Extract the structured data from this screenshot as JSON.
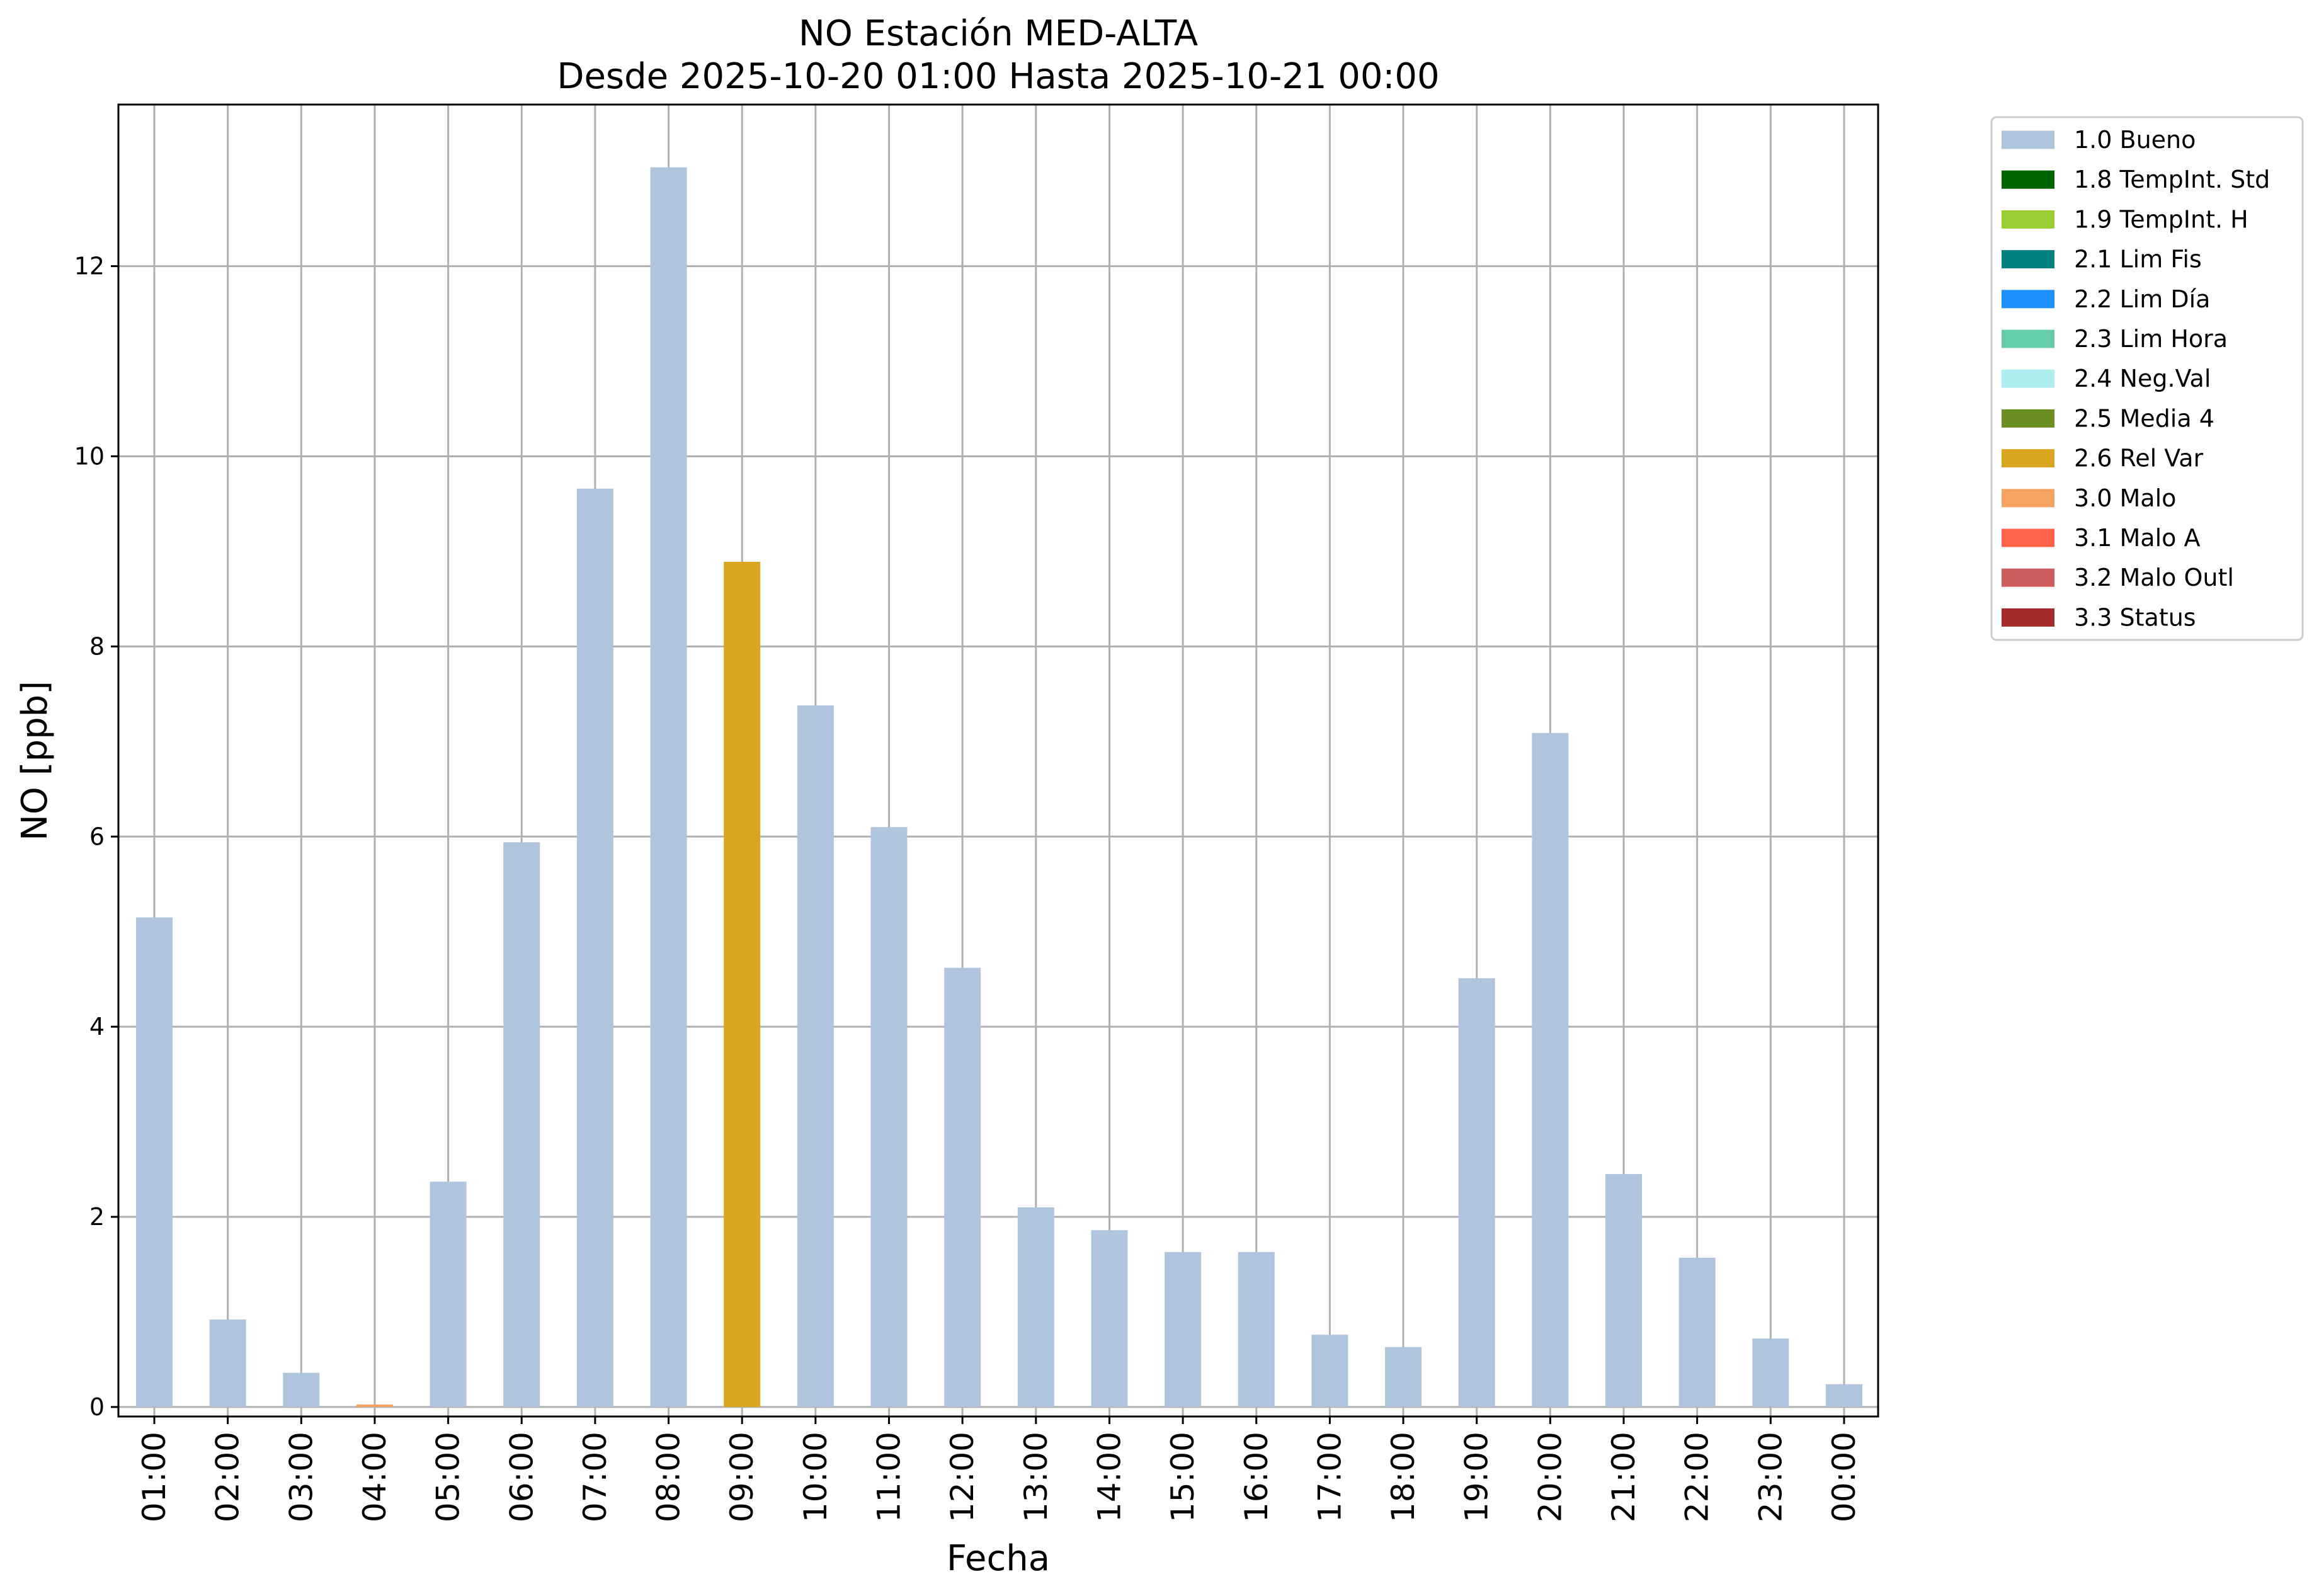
{
  "chart_data": {
    "type": "bar",
    "title": "NO Estación MED-ALTA",
    "subtitle": "Desde 2025-10-20 01:00 Hasta 2025-10-21 00:00",
    "xlabel": "Fecha",
    "ylabel": "NO [ppb]",
    "ylim": [
      -0.1,
      13.7
    ],
    "yticks": [
      0,
      2,
      4,
      6,
      8,
      10,
      12
    ],
    "grid": true,
    "legend_position": "outside top-right",
    "categories": [
      "01:00",
      "02:00",
      "03:00",
      "04:00",
      "05:00",
      "06:00",
      "07:00",
      "08:00",
      "09:00",
      "10:00",
      "11:00",
      "12:00",
      "13:00",
      "14:00",
      "15:00",
      "16:00",
      "17:00",
      "18:00",
      "19:00",
      "20:00",
      "21:00",
      "22:00",
      "23:00",
      "00:00"
    ],
    "values": [
      5.15,
      0.92,
      0.36,
      0.02,
      2.37,
      5.94,
      9.66,
      13.04,
      8.89,
      7.38,
      6.1,
      4.62,
      2.1,
      1.86,
      1.63,
      1.63,
      0.76,
      0.63,
      4.51,
      7.09,
      2.45,
      1.57,
      0.72,
      0.24
    ],
    "flags": [
      "1.0 Bueno",
      "1.0 Bueno",
      "1.0 Bueno",
      "3.0 Malo",
      "1.0 Bueno",
      "1.0 Bueno",
      "1.0 Bueno",
      "1.0 Bueno",
      "2.6 Rel Var",
      "1.0 Bueno",
      "1.0 Bueno",
      "1.0 Bueno",
      "1.0 Bueno",
      "1.0 Bueno",
      "1.0 Bueno",
      "1.0 Bueno",
      "1.0 Bueno",
      "1.0 Bueno",
      "1.0 Bueno",
      "1.0 Bueno",
      "1.0 Bueno",
      "1.0 Bueno",
      "1.0 Bueno",
      "1.0 Bueno"
    ],
    "legend": [
      {
        "name": "1.0 Bueno",
        "color": "#b0c4de"
      },
      {
        "name": "1.8 TempInt. Std",
        "color": "#006400"
      },
      {
        "name": "1.9 TempInt. H",
        "color": "#9acd32"
      },
      {
        "name": "2.1 Lim Fis",
        "color": "#008080"
      },
      {
        "name": "2.2 Lim Día",
        "color": "#1e90ff"
      },
      {
        "name": "2.3 Lim Hora",
        "color": "#66cdaa"
      },
      {
        "name": "2.4 Neg.Val",
        "color": "#afeeee"
      },
      {
        "name": "2.5 Media 4",
        "color": "#6b8e23"
      },
      {
        "name": "2.6 Rel Var",
        "color": "#daa520"
      },
      {
        "name": "3.0 Malo",
        "color": "#f4a460"
      },
      {
        "name": "3.1 Malo A",
        "color": "#ff6347"
      },
      {
        "name": "3.2 Malo Outl",
        "color": "#cd5c5c"
      },
      {
        "name": "3.3 Status",
        "color": "#a52a2a"
      }
    ]
  }
}
